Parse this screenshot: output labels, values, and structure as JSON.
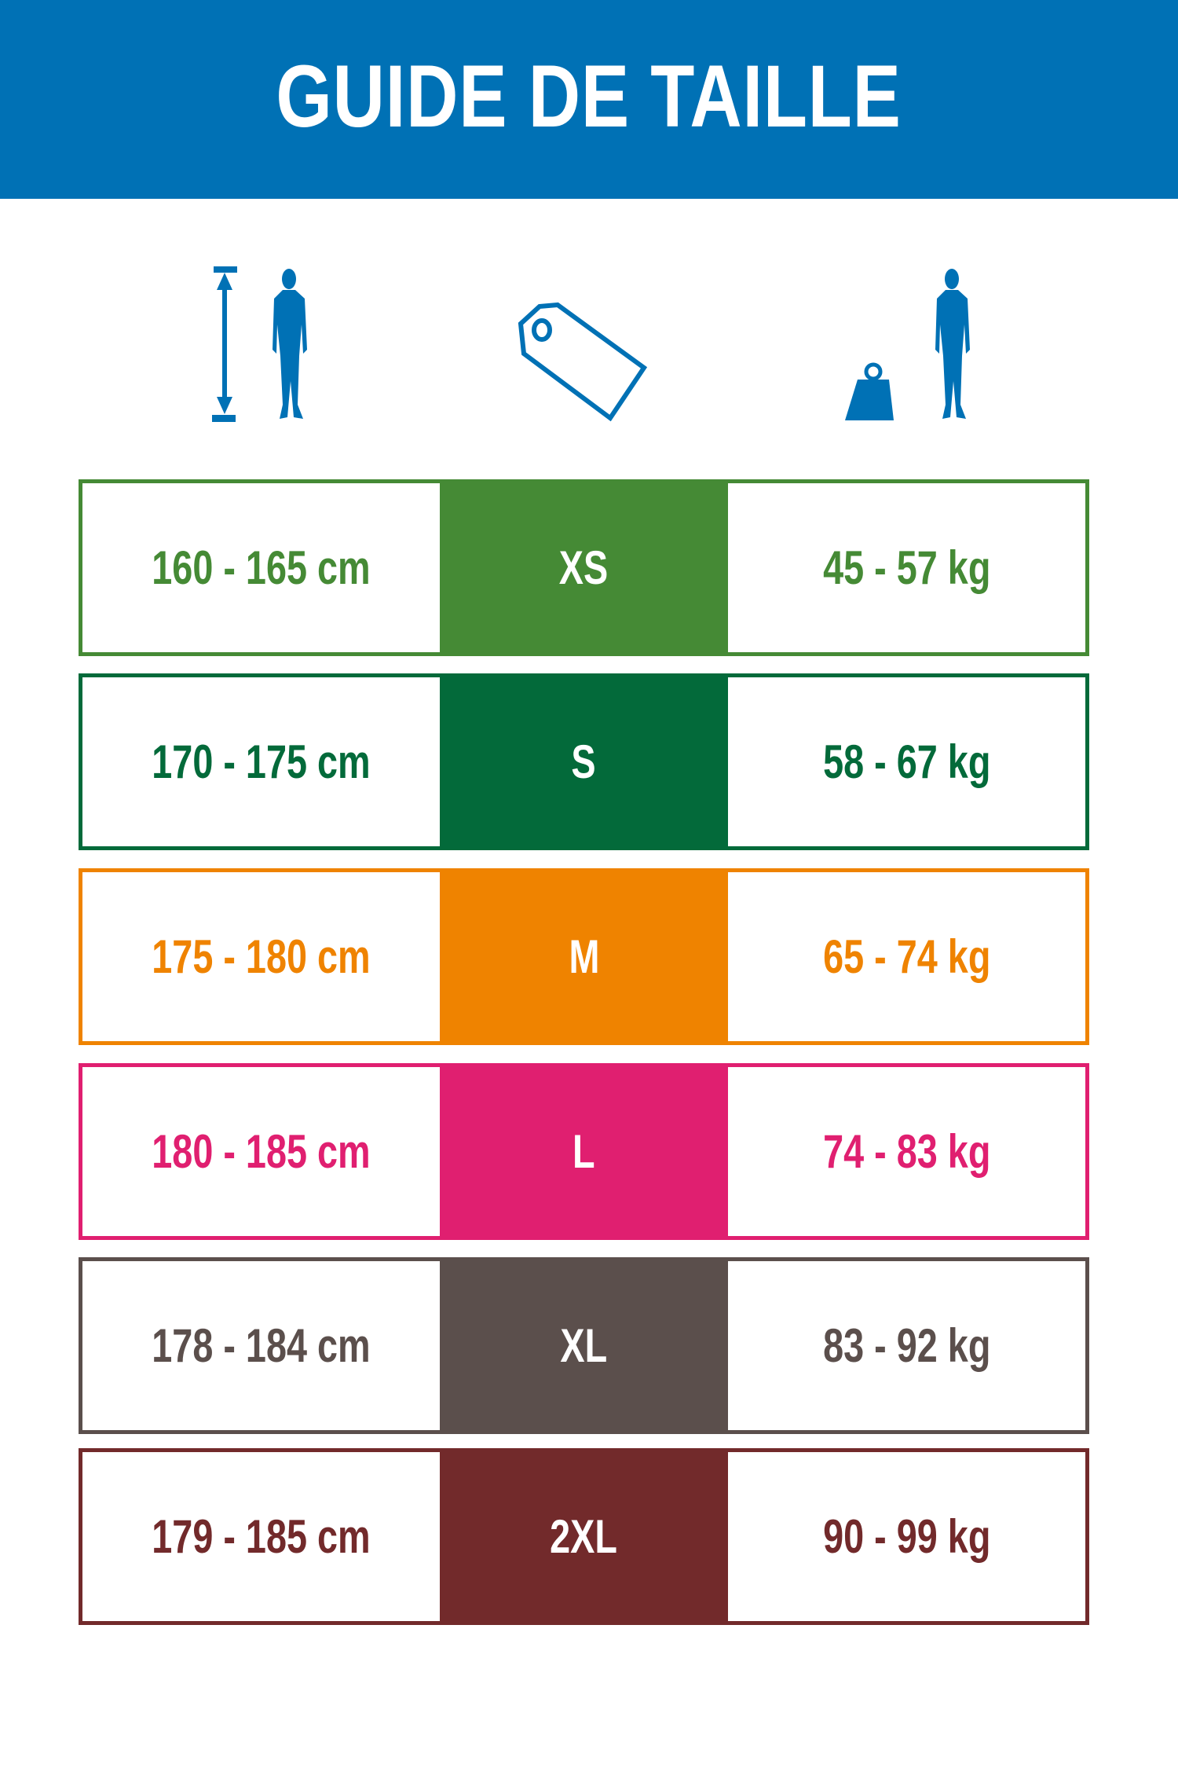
{
  "header": {
    "title": "GUIDE DE TAILLE",
    "color": "#0071b5"
  },
  "icons": [
    "height-person-icon",
    "size-tag-icon",
    "weight-person-icon"
  ],
  "rows": [
    {
      "height": "160 - 165 cm",
      "size": "XS",
      "weight": "45 - 57 kg",
      "color": "#458a35"
    },
    {
      "height": "170 - 175 cm",
      "size": "S",
      "weight": "58 - 67 kg",
      "color": "#036a3a"
    },
    {
      "height": "175 - 180 cm",
      "size": "M",
      "weight": "65 - 74 kg",
      "color": "#ef8300"
    },
    {
      "height": "180 - 185 cm",
      "size": "L",
      "weight": "74 - 83 kg",
      "color": "#e01f70"
    },
    {
      "height": "178 - 184 cm",
      "size": "XL",
      "weight": "83 - 92 kg",
      "color": "#5b4f4c"
    },
    {
      "height": "179 - 185 cm",
      "size": "2XL",
      "weight": "90 - 99 kg",
      "color": "#722a2b"
    }
  ]
}
